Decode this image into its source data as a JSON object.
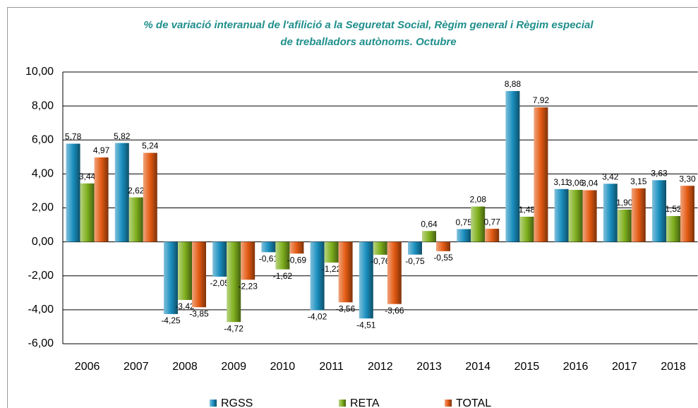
{
  "chart_data": {
    "type": "bar",
    "title": "% de variació interanual de l'afilició a la Seguretat Social, Règim general i Règim especial",
    "subtitle": "de treballadors autònoms. Octubre",
    "categories": [
      "2006",
      "2007",
      "2008",
      "2009",
      "2010",
      "2011",
      "2012",
      "2013",
      "2014",
      "2015",
      "2016",
      "2017",
      "2018"
    ],
    "series": [
      {
        "name": "RGSS",
        "color": "#1a8fbf",
        "values": [
          5.78,
          5.82,
          -4.25,
          -2.05,
          -0.61,
          -4.02,
          -4.51,
          -0.75,
          0.75,
          8.88,
          3.11,
          3.42,
          3.63
        ],
        "value_labels": [
          "5,78",
          "5,82",
          "-4,25",
          "-2,05",
          "-0,61",
          "-4,02",
          "-4,51",
          "-0,75",
          "0,75",
          "8,88",
          "3,11",
          "3,42",
          "3,63"
        ]
      },
      {
        "name": "RETA",
        "color": "#7fb01e",
        "values": [
          3.44,
          2.62,
          -3.42,
          -4.72,
          -1.62,
          -1.22,
          -0.76,
          0.64,
          2.08,
          1.48,
          3.06,
          1.9,
          1.52
        ],
        "value_labels": [
          "3,44",
          "2,62",
          "-3,42",
          "-4,72",
          "-1,62",
          "-1,22",
          "-0,76",
          "0,64",
          "2,08",
          "1,48",
          "3,06",
          "1,90",
          "1,52"
        ]
      },
      {
        "name": "TOTAL",
        "color": "#e35a12",
        "values": [
          4.97,
          5.24,
          -3.85,
          -2.23,
          -0.69,
          -3.56,
          -3.66,
          -0.55,
          0.77,
          7.92,
          3.04,
          3.15,
          3.3
        ],
        "value_labels": [
          "4,97",
          "5,24",
          "-3,85",
          "-2,23",
          "-0,69",
          "-3,56",
          "-3,66",
          "-0,55",
          "0,77",
          "7,92",
          "3,04",
          "3,15",
          "3,30"
        ]
      }
    ],
    "ylim": [
      -6,
      10
    ],
    "yticks": [
      {
        "value": -6,
        "label": "-6,00"
      },
      {
        "value": -4,
        "label": "-4,00"
      },
      {
        "value": -2,
        "label": "-2,00"
      },
      {
        "value": 0,
        "label": "0,00"
      },
      {
        "value": 2,
        "label": "2,00"
      },
      {
        "value": 4,
        "label": "4,00"
      },
      {
        "value": 6,
        "label": "6,00"
      },
      {
        "value": 8,
        "label": "8,00"
      },
      {
        "value": 10,
        "label": "10,00"
      }
    ],
    "grid": true,
    "legend": "bottom"
  }
}
